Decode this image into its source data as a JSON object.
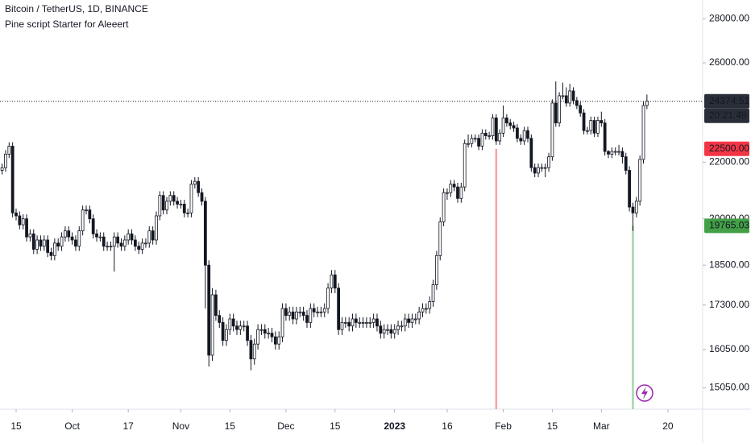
{
  "chart_data": {
    "type": "candlestick",
    "title": "Bitcoin / TetherUS, 1D, BINANCE",
    "subtitle": "Pine script Starter for Aleeert",
    "up_color": "#ffffff",
    "down_color": "#131722",
    "outline_color": "#131722",
    "log_scale": true,
    "ylim": [
      14520,
      28900
    ],
    "yticks": [
      {
        "value": 28000,
        "label": "28000.00"
      },
      {
        "value": 26000,
        "label": "26000.00"
      },
      {
        "value": 22000,
        "label": "22000.00"
      },
      {
        "value": 20000,
        "label": "20000.00"
      },
      {
        "value": 18500,
        "label": "18500.00"
      },
      {
        "value": 17300,
        "label": "17300.00"
      },
      {
        "value": 16050,
        "label": "16050.00"
      },
      {
        "value": 15050,
        "label": "15050.00"
      }
    ],
    "xlim": [
      -0.6,
      199.9
    ],
    "xticks": [
      {
        "value": 4,
        "label": "15"
      },
      {
        "value": 20,
        "label": "Oct"
      },
      {
        "value": 36,
        "label": "17"
      },
      {
        "value": 51,
        "label": "Nov"
      },
      {
        "value": 65,
        "label": "15"
      },
      {
        "value": 81,
        "label": "Dec"
      },
      {
        "value": 95,
        "label": "15"
      },
      {
        "value": 112,
        "label": "2023"
      },
      {
        "value": 127,
        "label": "16"
      },
      {
        "value": 143,
        "label": "Feb"
      },
      {
        "value": 157,
        "label": "15"
      },
      {
        "value": 171,
        "label": "Mar"
      },
      {
        "value": 190,
        "label": "20"
      }
    ],
    "last_price": {
      "value": 24374.51,
      "countdown": "20:21:49",
      "color": "#2a2e39"
    },
    "levels": [
      {
        "x": 141,
        "value": 22500,
        "label": "22500.00",
        "line_color": "#f7a1a1",
        "label_color": "#f23645"
      },
      {
        "x": 180,
        "value": 19765.03,
        "line_color": "#a5d6a7",
        "label_color": "#43a047"
      }
    ],
    "ohlc": [
      [
        21700,
        21950,
        21550,
        21800
      ],
      [
        21800,
        22450,
        21650,
        22300
      ],
      [
        22300,
        22750,
        22150,
        22600
      ],
      [
        22600,
        22750,
        20050,
        20200
      ],
      [
        20200,
        20350,
        19950,
        20100
      ],
      [
        20100,
        20250,
        19650,
        19800
      ],
      [
        19800,
        20150,
        19650,
        20000
      ],
      [
        20000,
        20150,
        19250,
        19400
      ],
      [
        19400,
        19650,
        19250,
        19500
      ],
      [
        19500,
        19650,
        18850,
        19000
      ],
      [
        19000,
        19450,
        18850,
        19300
      ],
      [
        19300,
        19450,
        18950,
        19100
      ],
      [
        19100,
        19450,
        18950,
        19300
      ],
      [
        19300,
        19450,
        18750,
        18900
      ],
      [
        18900,
        19050,
        18650,
        18800
      ],
      [
        18800,
        19350,
        18650,
        19200
      ],
      [
        19200,
        19350,
        18950,
        19100
      ],
      [
        19100,
        19550,
        18950,
        19400
      ],
      [
        19400,
        19750,
        19250,
        19600
      ],
      [
        19600,
        19750,
        19250,
        19400
      ],
      [
        19400,
        19550,
        19150,
        19300
      ],
      [
        19300,
        19450,
        18950,
        19100
      ],
      [
        19100,
        19750,
        18950,
        19600
      ],
      [
        19600,
        20450,
        19450,
        20300
      ],
      [
        20300,
        20450,
        20150,
        20300
      ],
      [
        20300,
        20450,
        19850,
        20000
      ],
      [
        20000,
        20150,
        19350,
        19500
      ],
      [
        19500,
        19650,
        19250,
        19400
      ],
      [
        19400,
        19550,
        19250,
        19400
      ],
      [
        19400,
        19550,
        18950,
        19100
      ],
      [
        19100,
        19250,
        18950,
        19100
      ],
      [
        19100,
        19250,
        18950,
        19100
      ],
      [
        19100,
        19550,
        18300,
        19400
      ],
      [
        19400,
        19550,
        19050,
        19200
      ],
      [
        19200,
        19350,
        18950,
        19100
      ],
      [
        19100,
        19450,
        18950,
        19300
      ],
      [
        19300,
        19650,
        19150,
        19500
      ],
      [
        19500,
        19650,
        19150,
        19300
      ],
      [
        19300,
        19450,
        18950,
        19100
      ],
      [
        19100,
        19250,
        18850,
        19000
      ],
      [
        19000,
        19350,
        18850,
        19200
      ],
      [
        19200,
        19350,
        19050,
        19200
      ],
      [
        19200,
        19750,
        19050,
        19600
      ],
      [
        19600,
        19750,
        19150,
        19300
      ],
      [
        19300,
        20250,
        19150,
        20100
      ],
      [
        20100,
        20950,
        19950,
        20800
      ],
      [
        20800,
        20950,
        20150,
        20300
      ],
      [
        20300,
        20750,
        20150,
        20600
      ],
      [
        20600,
        20950,
        20450,
        20800
      ],
      [
        20800,
        20950,
        20450,
        20600
      ],
      [
        20600,
        20750,
        20350,
        20500
      ],
      [
        20500,
        20650,
        20350,
        20500
      ],
      [
        20500,
        20650,
        20050,
        20200
      ],
      [
        20200,
        20350,
        20050,
        20200
      ],
      [
        20200,
        21350,
        20050,
        21200
      ],
      [
        21200,
        21450,
        21050,
        21300
      ],
      [
        21300,
        21450,
        20750,
        20900
      ],
      [
        20900,
        21050,
        20450,
        20600
      ],
      [
        20600,
        20750,
        17200,
        18500
      ],
      [
        18500,
        18650,
        15600,
        15900
      ],
      [
        15900,
        17800,
        15750,
        17600
      ],
      [
        17600,
        17750,
        16850,
        17000
      ],
      [
        17000,
        17150,
        16650,
        16800
      ],
      [
        16800,
        16950,
        16150,
        16300
      ],
      [
        16300,
        16750,
        16150,
        16600
      ],
      [
        16600,
        17050,
        16450,
        16900
      ],
      [
        16900,
        17050,
        16550,
        16700
      ],
      [
        16700,
        16850,
        16450,
        16600
      ],
      [
        16600,
        16850,
        16450,
        16700
      ],
      [
        16700,
        16850,
        16550,
        16700
      ],
      [
        16700,
        16850,
        16150,
        16300
      ],
      [
        16300,
        16450,
        15500,
        15800
      ],
      [
        15800,
        16350,
        15650,
        16200
      ],
      [
        16200,
        16750,
        16050,
        16600
      ],
      [
        16600,
        16750,
        16450,
        16600
      ],
      [
        16600,
        16750,
        16350,
        16500
      ],
      [
        16500,
        16650,
        16350,
        16500
      ],
      [
        16500,
        16650,
        16250,
        16400
      ],
      [
        16400,
        16550,
        16050,
        16200
      ],
      [
        16200,
        16550,
        16050,
        16400
      ],
      [
        16400,
        17350,
        16250,
        17200
      ],
      [
        17200,
        17350,
        16850,
        17000
      ],
      [
        17000,
        17250,
        16850,
        17100
      ],
      [
        17100,
        17250,
        16750,
        16900
      ],
      [
        16900,
        17250,
        16750,
        17100
      ],
      [
        17100,
        17250,
        16950,
        17100
      ],
      [
        17100,
        17250,
        16850,
        17000
      ],
      [
        17000,
        17150,
        16650,
        16800
      ],
      [
        16800,
        17350,
        16650,
        17200
      ],
      [
        17200,
        17350,
        16950,
        17100
      ],
      [
        17100,
        17250,
        16950,
        17100
      ],
      [
        17100,
        17250,
        16950,
        17100
      ],
      [
        17100,
        17350,
        16950,
        17200
      ],
      [
        17200,
        17950,
        17050,
        17800
      ],
      [
        17800,
        18350,
        17650,
        18200
      ],
      [
        18200,
        18350,
        17650,
        17800
      ],
      [
        17800,
        17950,
        16450,
        16600
      ],
      [
        16600,
        16950,
        16450,
        16800
      ],
      [
        16800,
        16950,
        16650,
        16800
      ],
      [
        16800,
        16950,
        16550,
        16700
      ],
      [
        16700,
        17050,
        16550,
        16900
      ],
      [
        16900,
        17050,
        16650,
        16800
      ],
      [
        16800,
        16950,
        16650,
        16800
      ],
      [
        16800,
        16950,
        16650,
        16800
      ],
      [
        16800,
        16950,
        16650,
        16800
      ],
      [
        16800,
        16950,
        16650,
        16800
      ],
      [
        16800,
        17050,
        16650,
        16900
      ],
      [
        16900,
        17050,
        16550,
        16700
      ],
      [
        16700,
        16850,
        16350,
        16500
      ],
      [
        16500,
        16750,
        16350,
        16600
      ],
      [
        16600,
        16750,
        16450,
        16600
      ],
      [
        16600,
        16750,
        16350,
        16500
      ],
      [
        16500,
        16750,
        16350,
        16600
      ],
      [
        16600,
        16850,
        16450,
        16700
      ],
      [
        16700,
        16850,
        16550,
        16700
      ],
      [
        16700,
        17050,
        16550,
        16900
      ],
      [
        16900,
        17050,
        16650,
        16800
      ],
      [
        16800,
        17050,
        16650,
        16900
      ],
      [
        16900,
        17050,
        16750,
        16900
      ],
      [
        16900,
        17250,
        16750,
        17100
      ],
      [
        17100,
        17350,
        16950,
        17200
      ],
      [
        17200,
        17350,
        17050,
        17200
      ],
      [
        17200,
        17550,
        17050,
        17400
      ],
      [
        17400,
        18050,
        17250,
        17900
      ],
      [
        17900,
        18950,
        17750,
        18800
      ],
      [
        18800,
        20050,
        18650,
        19900
      ],
      [
        19900,
        21050,
        19750,
        20900
      ],
      [
        20900,
        21050,
        20650,
        20900
      ],
      [
        20900,
        21350,
        20750,
        21200
      ],
      [
        21200,
        21350,
        20950,
        21100
      ],
      [
        21100,
        21250,
        20550,
        20700
      ],
      [
        20700,
        21250,
        20550,
        21100
      ],
      [
        21100,
        22850,
        20950,
        22700
      ],
      [
        22700,
        23050,
        22550,
        22700
      ],
      [
        22700,
        23050,
        22550,
        22900
      ],
      [
        22900,
        23050,
        22750,
        22900
      ],
      [
        22900,
        23050,
        22450,
        22600
      ],
      [
        22600,
        23250,
        22450,
        23100
      ],
      [
        23100,
        23250,
        22850,
        23000
      ],
      [
        23000,
        23150,
        22850,
        23000
      ],
      [
        23000,
        23850,
        22850,
        23700
      ],
      [
        23700,
        23850,
        22650,
        22800
      ],
      [
        22800,
        23250,
        22650,
        23100
      ],
      [
        23100,
        24200,
        22950,
        23700
      ],
      [
        23700,
        23850,
        23350,
        23500
      ],
      [
        23500,
        23650,
        23250,
        23400
      ],
      [
        23400,
        23550,
        23150,
        23300
      ],
      [
        23300,
        23450,
        22750,
        22900
      ],
      [
        22900,
        23050,
        22650,
        22800
      ],
      [
        22800,
        23350,
        22650,
        23200
      ],
      [
        23200,
        23350,
        22750,
        22900
      ],
      [
        22900,
        23050,
        21650,
        21800
      ],
      [
        21800,
        21950,
        21450,
        21600
      ],
      [
        21600,
        21950,
        21450,
        21800
      ],
      [
        21800,
        21950,
        21650,
        21800
      ],
      [
        21800,
        21950,
        21450,
        21800
      ],
      [
        21800,
        22350,
        21650,
        22200
      ],
      [
        22200,
        24450,
        22050,
        24300
      ],
      [
        24300,
        25200,
        23350,
        23500
      ],
      [
        23500,
        24750,
        23350,
        24600
      ],
      [
        24600,
        25150,
        24450,
        24600
      ],
      [
        24600,
        24950,
        24150,
        24300
      ],
      [
        24300,
        25100,
        24150,
        24800
      ],
      [
        24800,
        24950,
        24250,
        24400
      ],
      [
        24400,
        24550,
        24050,
        24200
      ],
      [
        24200,
        24350,
        23750,
        23900
      ],
      [
        23900,
        24050,
        23050,
        23200
      ],
      [
        23200,
        23350,
        23050,
        23200
      ],
      [
        23200,
        23750,
        23050,
        23600
      ],
      [
        23600,
        23750,
        22950,
        23100
      ],
      [
        23100,
        23750,
        22950,
        23600
      ],
      [
        23600,
        23950,
        23350,
        23500
      ],
      [
        23500,
        23650,
        22250,
        22400
      ],
      [
        22400,
        22450,
        22150,
        22300
      ],
      [
        22300,
        22550,
        22150,
        22400
      ],
      [
        22400,
        22550,
        22250,
        22400
      ],
      [
        22400,
        22650,
        22250,
        22400
      ],
      [
        22400,
        22550,
        21950,
        22200
      ],
      [
        22200,
        22350,
        21550,
        21700
      ],
      [
        21700,
        21850,
        20250,
        20400
      ],
      [
        20400,
        20550,
        19600,
        20200
      ],
      [
        20200,
        20750,
        20050,
        20600
      ],
      [
        20600,
        22250,
        20450,
        22100
      ],
      [
        22100,
        24350,
        21950,
        24200
      ],
      [
        24200,
        24650,
        24050,
        24374.51
      ]
    ]
  }
}
